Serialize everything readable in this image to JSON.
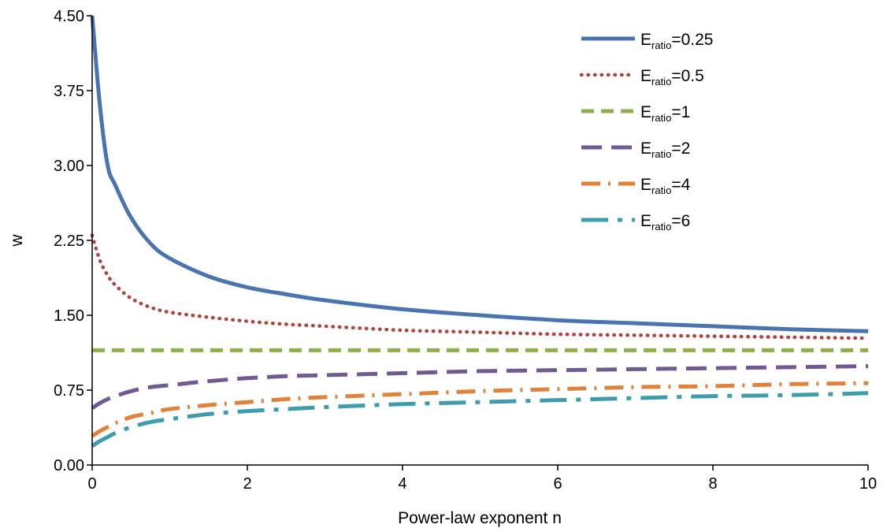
{
  "chart_data": {
    "type": "line",
    "title": "",
    "xlabel": "Power-law exponent n",
    "ylabel": "w",
    "xlim": [
      0,
      10
    ],
    "ylim": [
      0,
      4.5
    ],
    "x_ticks": [
      "0",
      "2",
      "4",
      "6",
      "8",
      "10"
    ],
    "y_ticks": [
      "0.00",
      "0.75",
      "1.50",
      "2.25",
      "3.00",
      "3.75",
      "4.50"
    ],
    "grid": false,
    "legend_position": "top-right",
    "x": [
      0,
      0.1,
      0.2,
      0.3,
      0.5,
      0.75,
      1,
      1.5,
      2,
      2.5,
      3,
      4,
      5,
      6,
      7,
      8,
      9,
      10
    ],
    "series": [
      {
        "name": "E",
        "subscript": "ratio",
        "suffix": "=0.25",
        "color": "#4a74b0",
        "style": "solid",
        "values": [
          4.5,
          3.6,
          3.0,
          2.8,
          2.48,
          2.22,
          2.07,
          1.89,
          1.78,
          1.71,
          1.65,
          1.56,
          1.5,
          1.45,
          1.42,
          1.39,
          1.36,
          1.34
        ]
      },
      {
        "name": "E",
        "subscript": "ratio",
        "suffix": "=0.5",
        "color": "#b0443f",
        "style": "dotted",
        "values": [
          2.3,
          2.05,
          1.9,
          1.8,
          1.67,
          1.58,
          1.53,
          1.48,
          1.44,
          1.41,
          1.39,
          1.35,
          1.33,
          1.31,
          1.3,
          1.29,
          1.28,
          1.27
        ]
      },
      {
        "name": "E",
        "subscript": "ratio",
        "suffix": "=1",
        "color": "#8eb04a",
        "style": "dashed",
        "values": [
          1.15,
          1.15,
          1.15,
          1.15,
          1.15,
          1.15,
          1.15,
          1.15,
          1.15,
          1.15,
          1.15,
          1.15,
          1.15,
          1.15,
          1.15,
          1.15,
          1.15,
          1.15
        ]
      },
      {
        "name": "E",
        "subscript": "ratio",
        "suffix": "=2",
        "color": "#715994",
        "style": "longdash",
        "values": [
          0.57,
          0.62,
          0.66,
          0.69,
          0.74,
          0.78,
          0.8,
          0.84,
          0.87,
          0.89,
          0.9,
          0.92,
          0.94,
          0.95,
          0.96,
          0.97,
          0.98,
          0.99
        ]
      },
      {
        "name": "E",
        "subscript": "ratio",
        "suffix": "=4",
        "color": "#e0823a",
        "style": "dashdot",
        "values": [
          0.29,
          0.34,
          0.38,
          0.42,
          0.48,
          0.52,
          0.56,
          0.6,
          0.63,
          0.66,
          0.68,
          0.71,
          0.74,
          0.76,
          0.78,
          0.79,
          0.81,
          0.82
        ]
      },
      {
        "name": "E",
        "subscript": "ratio",
        "suffix": "=6",
        "color": "#3d9cae",
        "style": "longdashdot",
        "values": [
          0.19,
          0.24,
          0.28,
          0.32,
          0.38,
          0.43,
          0.46,
          0.51,
          0.54,
          0.56,
          0.58,
          0.61,
          0.63,
          0.65,
          0.67,
          0.69,
          0.7,
          0.72
        ]
      }
    ]
  }
}
